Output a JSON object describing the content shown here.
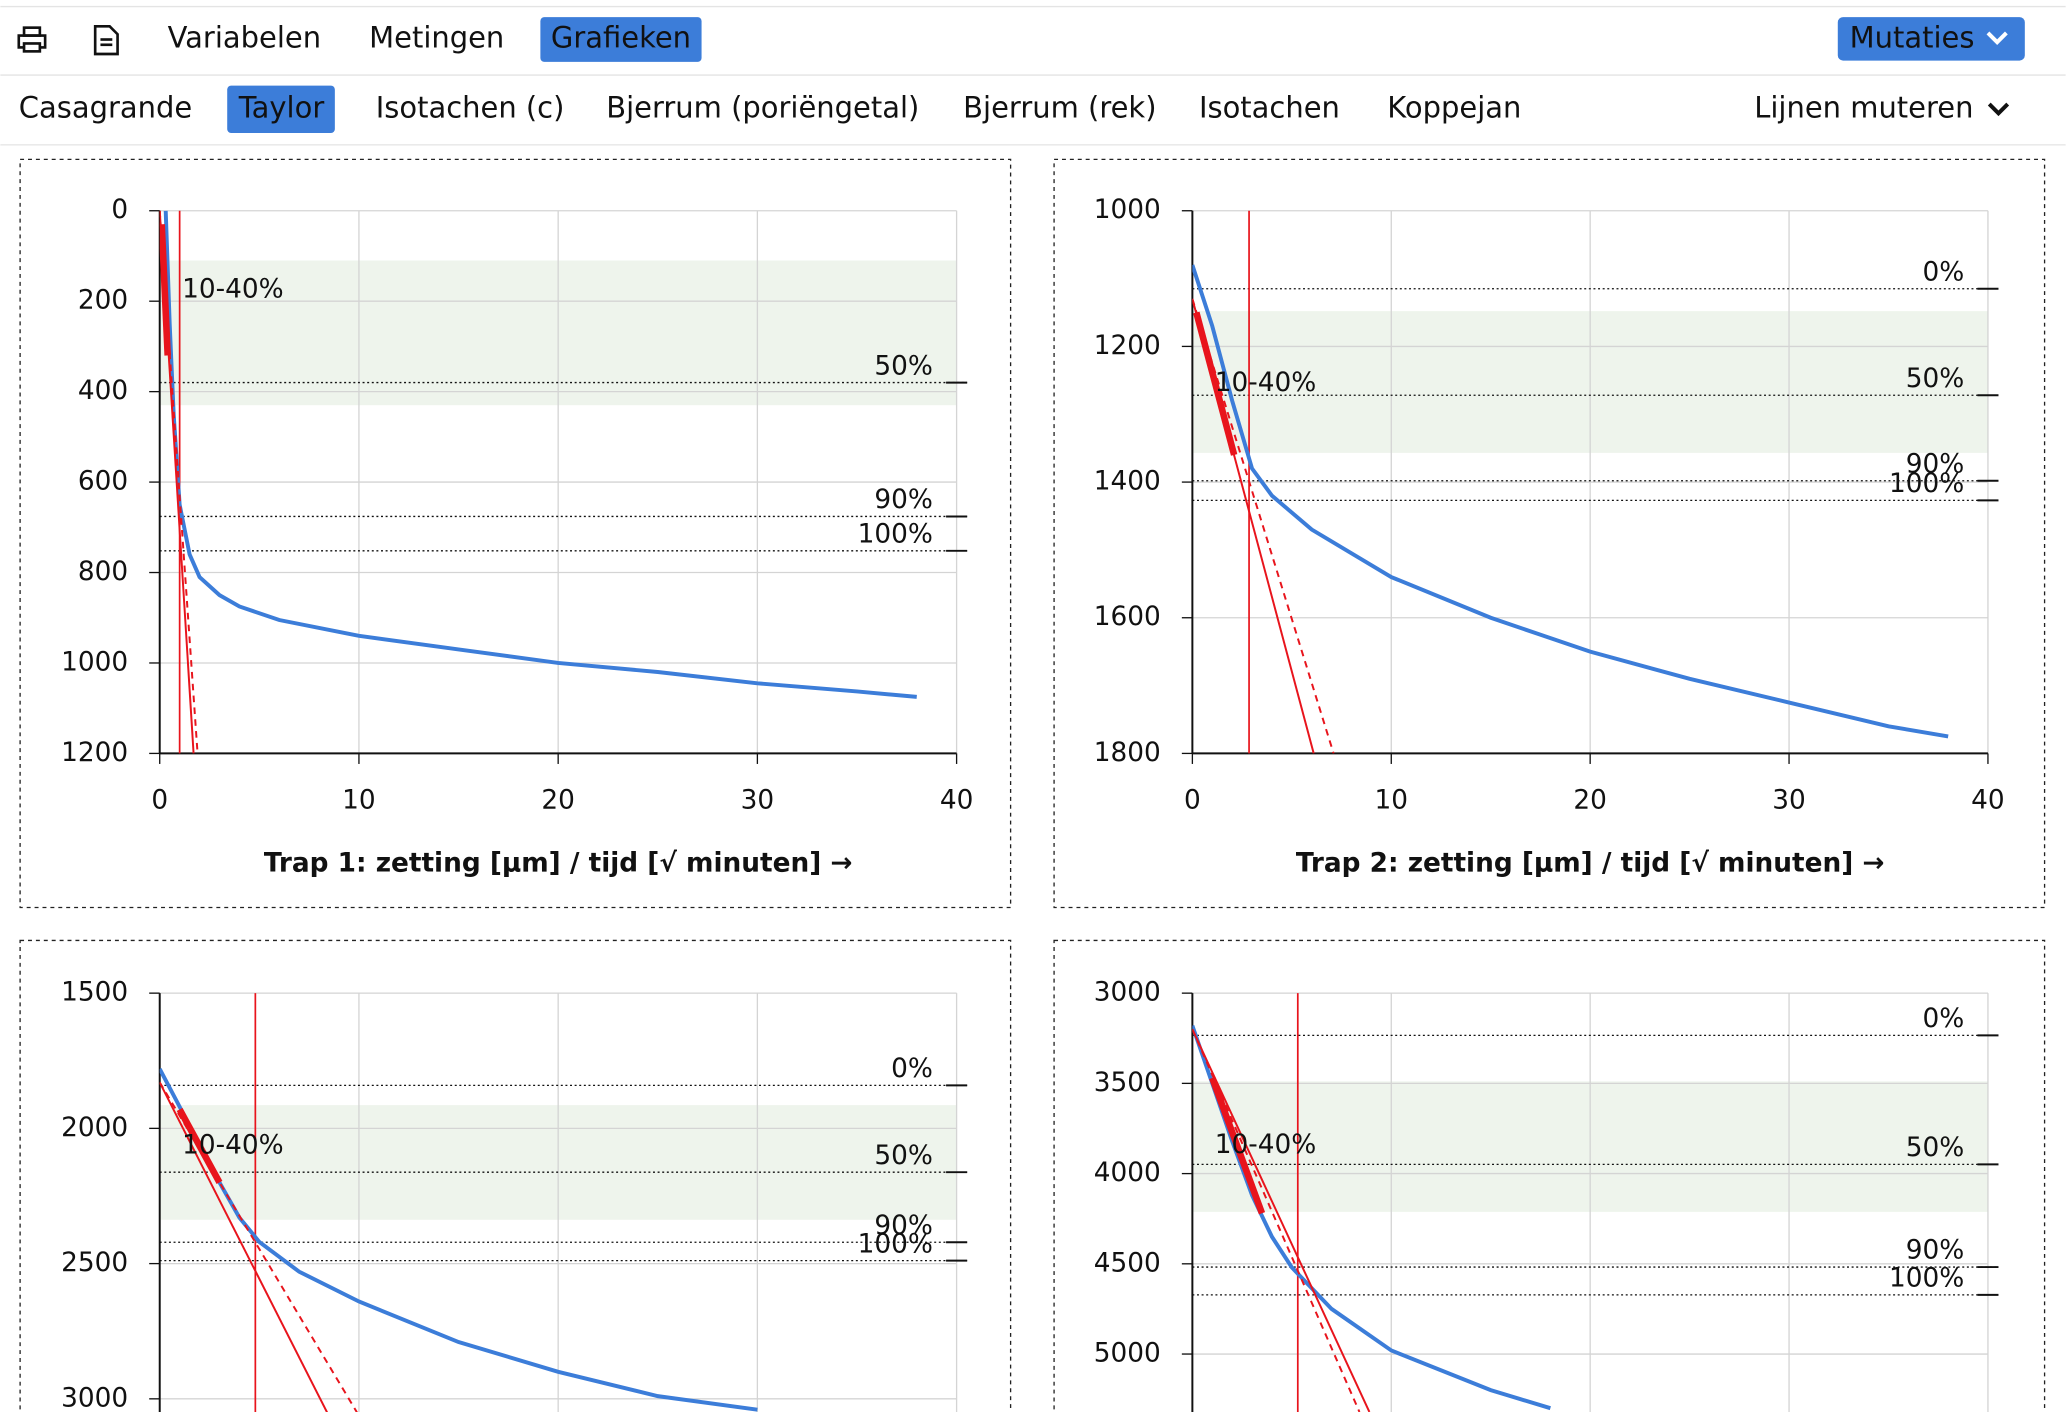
{
  "toolbar": {
    "tabs": [
      "Variabelen",
      "Metingen",
      "Grafieken"
    ],
    "active_tab": 2,
    "button": "Mutaties"
  },
  "methods": {
    "items": [
      "Casagrande",
      "Taylor",
      "Isotachen (c)",
      "Bjerrum (poriëngetal)",
      "Bjerrum (rek)",
      "Isotachen",
      "Koppejan"
    ],
    "active": 1,
    "menu": "Lijnen muteren"
  },
  "chart_data": [
    {
      "type": "line",
      "xlabel": "Trap 1: zetting [µm] / tijd [√ minuten] →",
      "xlim": [
        0,
        40
      ],
      "xticks": [
        0,
        10,
        20,
        30,
        40
      ],
      "ylim": [
        0,
        1200
      ],
      "yticks": [
        0,
        200,
        400,
        600,
        800,
        1000,
        1200
      ],
      "y_inverted": true,
      "grid": true,
      "band": [
        110,
        430
      ],
      "band_color": "#eef4ec",
      "levels": [
        {
          "label": "50%",
          "value": 380
        },
        {
          "label": "90%",
          "value": 676
        },
        {
          "label": "100%",
          "value": 752
        }
      ],
      "annotation": "10-40%",
      "vline": 1,
      "vline_color": "#e8141c",
      "series": [
        {
          "color": "#3c7dd9",
          "width": 3,
          "dash": false,
          "x": [
            0.3,
            0.5,
            0.7,
            1,
            1.5,
            2,
            3,
            4,
            6,
            10,
            15,
            20,
            25,
            30,
            35,
            38
          ],
          "values": [
            0,
            250,
            450,
            650,
            760,
            810,
            850,
            875,
            905,
            940,
            970,
            1000,
            1020,
            1045,
            1063,
            1075
          ]
        },
        {
          "color": "#e8141c",
          "width": 1.5,
          "dash": false,
          "x": [
            0,
            1.7
          ],
          "values": [
            0,
            1200
          ]
        },
        {
          "color": "#e8141c",
          "width": 1.5,
          "dash": true,
          "x": [
            0,
            1.9
          ],
          "values": [
            0,
            1200
          ]
        },
        {
          "color": "#e8141c",
          "width": 5,
          "dash": false,
          "x": [
            0.1,
            0.4
          ],
          "values": [
            30,
            320
          ]
        }
      ]
    },
    {
      "type": "line",
      "xlabel": "Trap 2: zetting [µm] / tijd [√ minuten] →",
      "xlim": [
        0,
        40
      ],
      "xticks": [
        0,
        10,
        20,
        30,
        40
      ],
      "ylim": [
        1000,
        1800
      ],
      "yticks": [
        1000,
        1200,
        1400,
        1600,
        1800
      ],
      "y_inverted": true,
      "grid": true,
      "band": [
        1148,
        1357
      ],
      "band_color": "#eef4ec",
      "levels": [
        {
          "label": "0%",
          "value": 1115
        },
        {
          "label": "50%",
          "value": 1272
        },
        {
          "label": "90%",
          "value": 1398
        },
        {
          "label": "100%",
          "value": 1427
        }
      ],
      "annotation": "10-40%",
      "vline": 2.85,
      "vline_color": "#e8141c",
      "series": [
        {
          "color": "#3c7dd9",
          "width": 3,
          "dash": false,
          "x": [
            0,
            1,
            2,
            3,
            4,
            6,
            10,
            15,
            20,
            25,
            30,
            35,
            38
          ],
          "values": [
            1080,
            1170,
            1280,
            1380,
            1420,
            1470,
            1540,
            1600,
            1650,
            1690,
            1725,
            1760,
            1775
          ]
        },
        {
          "color": "#e8141c",
          "width": 1.5,
          "dash": false,
          "x": [
            0,
            6.1
          ],
          "values": [
            1130,
            1800
          ]
        },
        {
          "color": "#e8141c",
          "width": 1.5,
          "dash": true,
          "x": [
            0,
            7.1
          ],
          "values": [
            1130,
            1800
          ]
        },
        {
          "color": "#e8141c",
          "width": 5,
          "dash": false,
          "x": [
            0.2,
            2.1
          ],
          "values": [
            1150,
            1360
          ]
        }
      ]
    },
    {
      "type": "line",
      "xlabel": null,
      "xlim": [
        0,
        40
      ],
      "xticks": [
        0,
        10,
        20,
        30,
        40
      ],
      "ylim": [
        1500,
        3000
      ],
      "yticks": [
        1500,
        2000,
        2500,
        3000
      ],
      "y_inverted": true,
      "grid": true,
      "band": [
        1914,
        2338
      ],
      "band_color": "#eef4ec",
      "levels": [
        {
          "label": "0%",
          "value": 1841
        },
        {
          "label": "50%",
          "value": 2162
        },
        {
          "label": "90%",
          "value": 2421
        },
        {
          "label": "100%",
          "value": 2489
        }
      ],
      "annotation": "10-40%",
      "vline": 4.8,
      "vline_color": "#e8141c",
      "series": [
        {
          "color": "#3c7dd9",
          "width": 3,
          "dash": false,
          "x": [
            0,
            1,
            2,
            3,
            4,
            5,
            7,
            10,
            15,
            20,
            25,
            30
          ],
          "values": [
            1780,
            1920,
            2060,
            2200,
            2330,
            2420,
            2530,
            2640,
            2790,
            2900,
            2990,
            3040
          ]
        },
        {
          "color": "#e8141c",
          "width": 1.5,
          "dash": false,
          "x": [
            0,
            8.4
          ],
          "values": [
            1830,
            3050
          ]
        },
        {
          "color": "#e8141c",
          "width": 1.5,
          "dash": true,
          "x": [
            0,
            9.9
          ],
          "values": [
            1830,
            3050
          ]
        },
        {
          "color": "#e8141c",
          "width": 5,
          "dash": false,
          "x": [
            1,
            3
          ],
          "values": [
            1930,
            2200
          ]
        }
      ]
    },
    {
      "type": "line",
      "xlabel": null,
      "xlim": [
        0,
        40
      ],
      "xticks": [
        0,
        10,
        20,
        30,
        40
      ],
      "ylim": [
        3000,
        5000
      ],
      "yticks": [
        3000,
        3500,
        4000,
        4500,
        5000
      ],
      "y_inverted": true,
      "grid": true,
      "band": [
        3489,
        4212
      ],
      "band_color": "#eef4ec",
      "levels": [
        {
          "label": "0%",
          "value": 3234
        },
        {
          "label": "50%",
          "value": 3949
        },
        {
          "label": "90%",
          "value": 4518
        },
        {
          "label": "100%",
          "value": 4672
        }
      ],
      "annotation": "10-40%",
      "vline": 5.3,
      "vline_color": "#e8141c",
      "series": [
        {
          "color": "#3c7dd9",
          "width": 3,
          "dash": false,
          "x": [
            0,
            1,
            2,
            3,
            4,
            5,
            7,
            10,
            15,
            18
          ],
          "values": [
            3180,
            3500,
            3820,
            4120,
            4350,
            4520,
            4750,
            4980,
            5200,
            5300
          ]
        },
        {
          "color": "#e8141c",
          "width": 1.5,
          "dash": false,
          "x": [
            0,
            8.9
          ],
          "values": [
            3200,
            5321
          ]
        },
        {
          "color": "#e8141c",
          "width": 1.5,
          "dash": true,
          "x": [
            0,
            8.4
          ],
          "values": [
            3200,
            5321
          ]
        },
        {
          "color": "#e8141c",
          "width": 5,
          "dash": false,
          "x": [
            1,
            3.5
          ],
          "values": [
            3470,
            4220
          ]
        }
      ]
    }
  ]
}
